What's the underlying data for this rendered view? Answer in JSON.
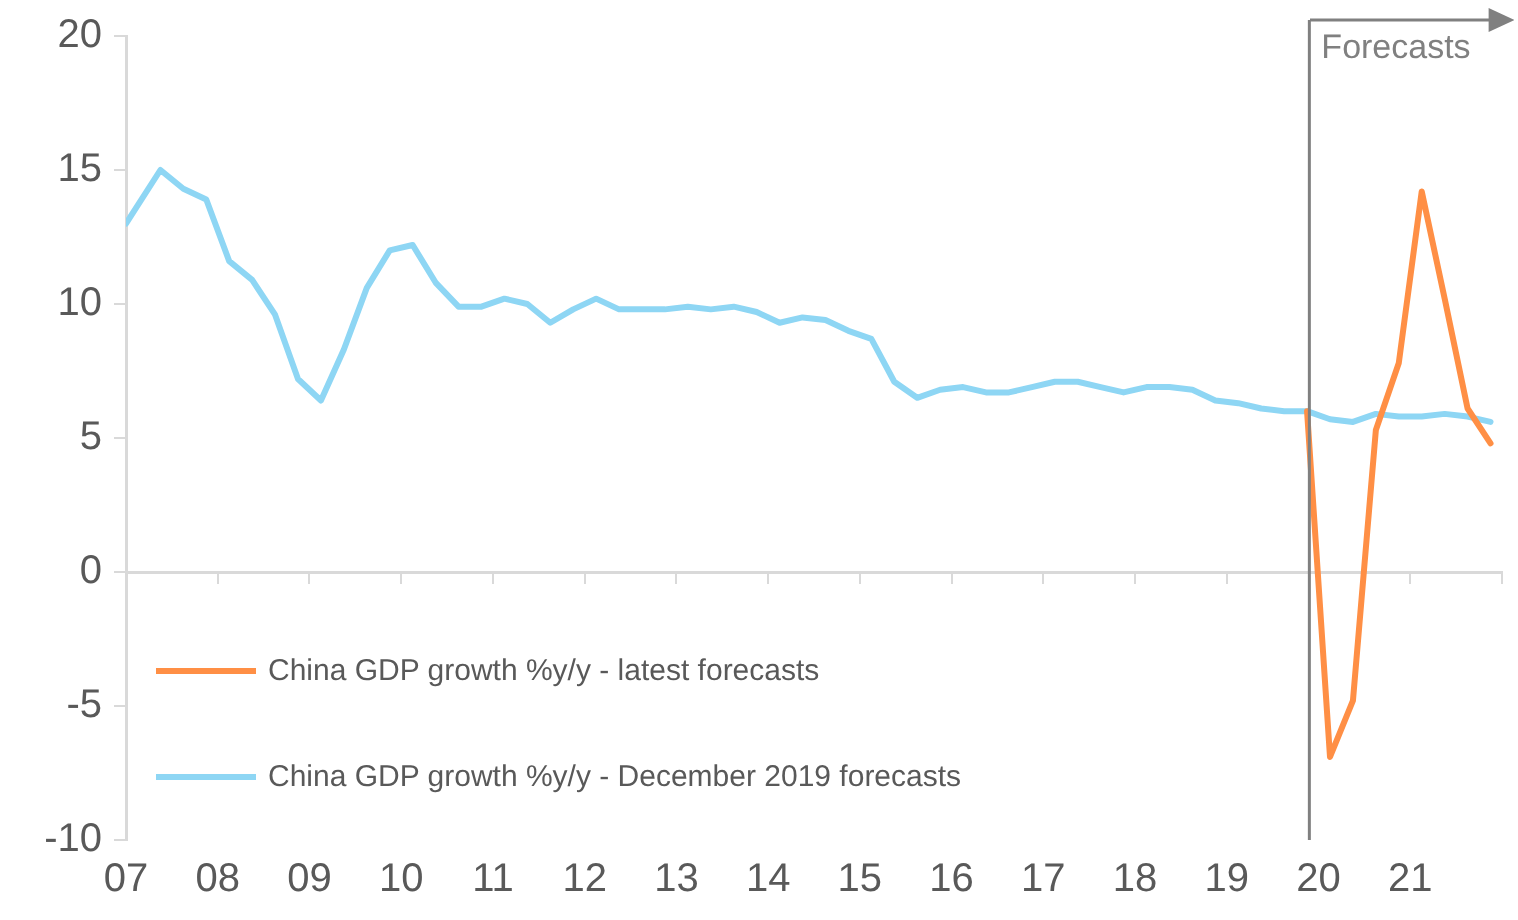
{
  "chart_data": {
    "type": "line",
    "series": [
      {
        "name": "China GDP growth %y/y - latest forecasts",
        "color": "#ff8f45",
        "x": [
          2019.875,
          2020.125,
          2020.375,
          2020.625,
          2020.875,
          2021.125,
          2021.375,
          2021.625,
          2021.875
        ],
        "values": [
          6.0,
          -6.9,
          -4.8,
          5.3,
          7.8,
          14.2,
          10.2,
          6.1,
          4.8
        ]
      },
      {
        "name": "China GDP growth %y/y - December 2019 forecasts",
        "color": "#8ed6f4",
        "x": [
          2007.0,
          2007.375,
          2007.625,
          2007.875,
          2008.125,
          2008.375,
          2008.625,
          2008.875,
          2009.125,
          2009.375,
          2009.625,
          2009.875,
          2010.125,
          2010.375,
          2010.625,
          2010.875,
          2011.125,
          2011.375,
          2011.625,
          2011.875,
          2012.125,
          2012.375,
          2012.625,
          2012.875,
          2013.125,
          2013.375,
          2013.625,
          2013.875,
          2014.125,
          2014.375,
          2014.625,
          2014.875,
          2015.125,
          2015.375,
          2015.625,
          2015.875,
          2016.125,
          2016.375,
          2016.625,
          2016.875,
          2017.125,
          2017.375,
          2017.625,
          2017.875,
          2018.125,
          2018.375,
          2018.625,
          2018.875,
          2019.125,
          2019.375,
          2019.625,
          2019.875,
          2020.125,
          2020.375,
          2020.625,
          2020.875,
          2021.125,
          2021.375,
          2021.625,
          2021.875
        ],
        "values": [
          13.0,
          15.0,
          14.3,
          13.9,
          11.6,
          10.9,
          9.6,
          7.2,
          6.4,
          8.3,
          10.6,
          12.0,
          12.2,
          10.8,
          9.9,
          9.9,
          10.2,
          10.0,
          9.3,
          9.8,
          10.2,
          9.8,
          9.8,
          9.8,
          9.9,
          9.8,
          9.9,
          9.7,
          9.3,
          9.5,
          9.4,
          9.0,
          8.7,
          7.1,
          6.5,
          6.8,
          6.9,
          6.7,
          6.7,
          6.9,
          7.1,
          7.1,
          6.9,
          6.7,
          6.9,
          6.9,
          6.8,
          6.4,
          6.3,
          6.1,
          6.0,
          6.0,
          5.7,
          5.6,
          5.9,
          5.8,
          5.8,
          5.9,
          5.8,
          5.6
        ]
      }
    ],
    "xlim": [
      2007,
      2022
    ],
    "xticks": [
      {
        "value": 2007,
        "label": "07"
      },
      {
        "value": 2008,
        "label": "08"
      },
      {
        "value": 2009,
        "label": "09"
      },
      {
        "value": 2010,
        "label": "10"
      },
      {
        "value": 2011,
        "label": "11"
      },
      {
        "value": 2012,
        "label": "12"
      },
      {
        "value": 2013,
        "label": "13"
      },
      {
        "value": 2014,
        "label": "14"
      },
      {
        "value": 2015,
        "label": "15"
      },
      {
        "value": 2016,
        "label": "16"
      },
      {
        "value": 2017,
        "label": "17"
      },
      {
        "value": 2018,
        "label": "18"
      },
      {
        "value": 2019,
        "label": "19"
      },
      {
        "value": 2020,
        "label": "20"
      },
      {
        "value": 2021,
        "label": "21"
      },
      {
        "value": 2022,
        "label": null
      }
    ],
    "ylim": [
      -10,
      20
    ],
    "yticks": [
      -10,
      -5,
      0,
      5,
      10,
      15,
      20
    ],
    "ref_lines": [
      {
        "axis": "x",
        "value": 2019.9,
        "label": "Forecasts",
        "color": "#808080"
      }
    ],
    "legend": "bottom left",
    "marker": "none",
    "line_style": "solid"
  }
}
